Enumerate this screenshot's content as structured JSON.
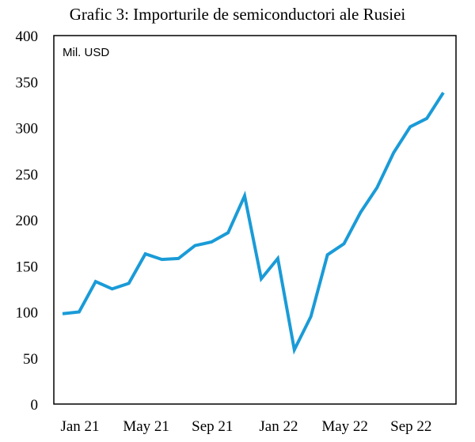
{
  "chart_data": {
    "type": "line",
    "title": "Grafic 3: Importurile de semiconductori ale Rusiei",
    "unit_label": "Mil. USD",
    "xlabel": "",
    "ylabel": "",
    "ylim": [
      0,
      400
    ],
    "y_ticks": [
      0,
      50,
      100,
      150,
      200,
      250,
      300,
      350,
      400
    ],
    "x_ticks": [
      "Jan 21",
      "May 21",
      "Sep 21",
      "Jan 22",
      "May 22",
      "Sep 22"
    ],
    "x": [
      "Jan 21",
      "Feb 21",
      "Mar 21",
      "Apr 21",
      "May 21",
      "Jun 21",
      "Jul 21",
      "Aug 21",
      "Sep 21",
      "Oct 21",
      "Nov 21",
      "Dec 21",
      "Jan 22",
      "Feb 22",
      "Mar 22",
      "Apr 22",
      "May 22",
      "Jun 22",
      "Jul 22",
      "Aug 22",
      "Sep 22",
      "Oct 22",
      "Nov 22",
      "Dec 22"
    ],
    "series": [
      {
        "name": "",
        "color": "#1a9bd7",
        "values": [
          98,
          100,
          133,
          125,
          131,
          163,
          157,
          158,
          172,
          176,
          186,
          226,
          136,
          158,
          59,
          95,
          162,
          174,
          208,
          235,
          273,
          301,
          310,
          338
        ]
      }
    ],
    "grid": false,
    "legend": "none"
  }
}
